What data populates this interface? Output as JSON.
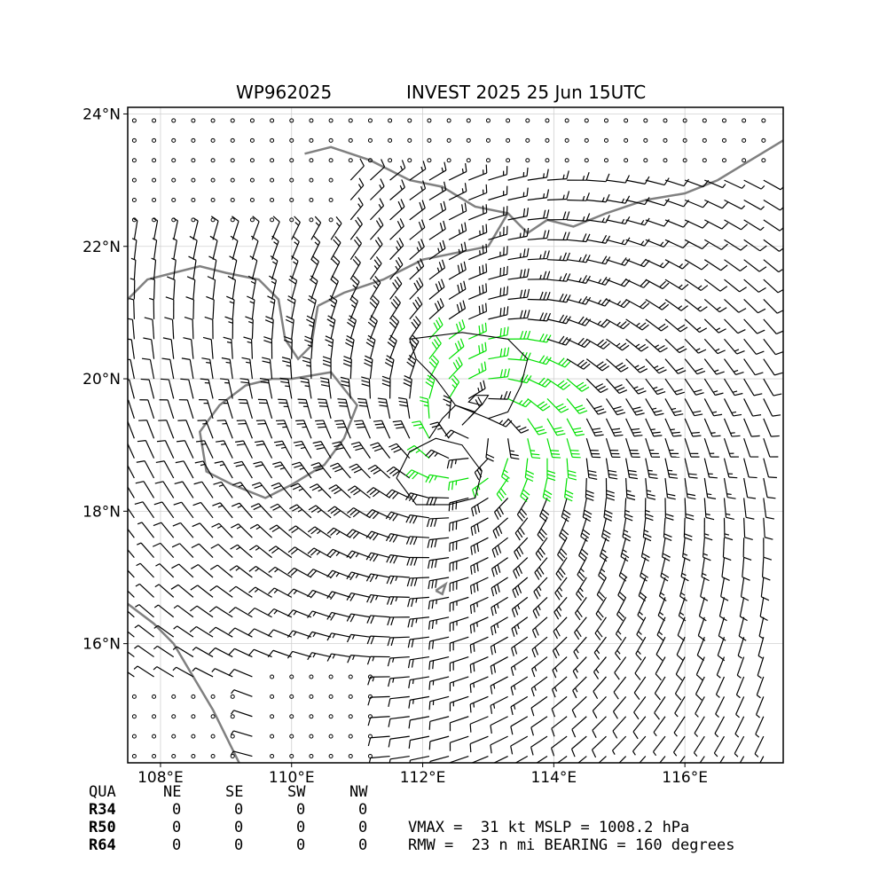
{
  "title": {
    "storm_id": "WP962025",
    "description": "INVEST 2025 25 Jun 15UTC"
  },
  "map": {
    "lon_range": [
      107.5,
      117.5
    ],
    "lat_range": [
      14.2,
      24.1
    ],
    "x_ticks": [
      "108°E",
      "110°E",
      "112°E",
      "114°E",
      "116°E"
    ],
    "y_ticks": [
      "16°N",
      "18°N",
      "20°N",
      "22°N",
      "24°N"
    ],
    "grid": true,
    "coastline_color": "#808080",
    "barb_color": "#000000",
    "highlight_barb_color": "#00e000",
    "contour_color": "#000000"
  },
  "wind_radii_table": {
    "header": [
      "QUA",
      "NE",
      "SE",
      "SW",
      "NW"
    ],
    "rows": [
      {
        "label": "R34",
        "values": [
          "0",
          "0",
          "0",
          "0"
        ]
      },
      {
        "label": "R50",
        "values": [
          "0",
          "0",
          "0",
          "0"
        ]
      },
      {
        "label": "R64",
        "values": [
          "0",
          "0",
          "0",
          "0"
        ]
      }
    ]
  },
  "stats": {
    "line1": "VMAX =  31 kt MSLP = 1008.2 hPa",
    "line2": "RMW =  23 n mi BEARING = 160 degrees"
  }
}
